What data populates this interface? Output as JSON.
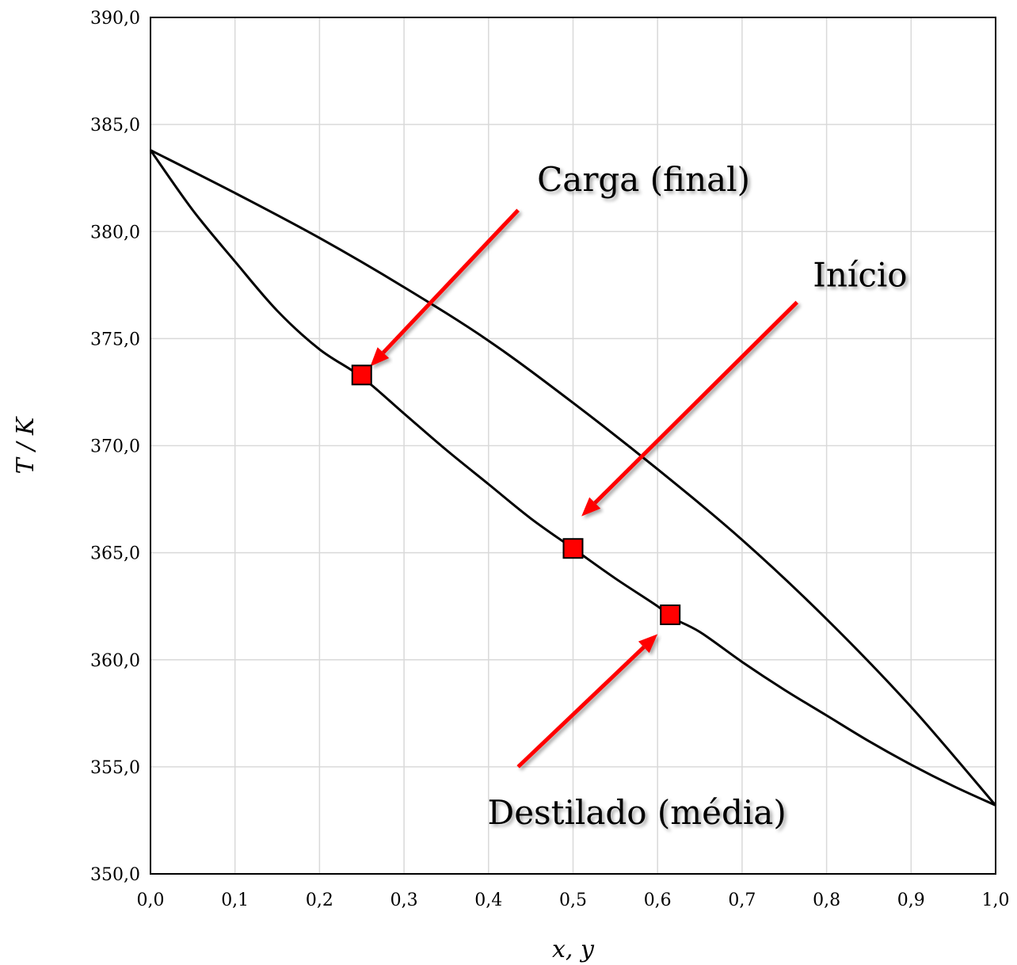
{
  "chart_data": {
    "type": "line",
    "xlabel": "x, y",
    "ylabel": "T / K",
    "xlim": [
      0,
      1
    ],
    "ylim": [
      350,
      390
    ],
    "xticks": [
      0,
      0.1,
      0.2,
      0.3,
      0.4,
      0.5,
      0.6,
      0.7,
      0.8,
      0.9,
      1.0
    ],
    "xtick_labels": [
      "0,0",
      "0,1",
      "0,2",
      "0,3",
      "0,4",
      "0,5",
      "0,6",
      "0,7",
      "0,8",
      "0,9",
      "1,0"
    ],
    "yticks": [
      350,
      355,
      360,
      365,
      370,
      375,
      380,
      385,
      390
    ],
    "ytick_labels": [
      "350,0",
      "355,0",
      "360,0",
      "365,0",
      "370,0",
      "375,0",
      "380,0",
      "385,0",
      "390,0"
    ],
    "grid": true,
    "colors": {
      "curves": "#000000",
      "markers": "#ff0000",
      "arrows": "#ff0000"
    },
    "series": [
      {
        "x": [
          0,
          0.05,
          0.1,
          0.15,
          0.2,
          0.25,
          0.3,
          0.35,
          0.4,
          0.45,
          0.5,
          0.55,
          0.6,
          0.615,
          0.65,
          0.7,
          0.75,
          0.8,
          0.85,
          0.9,
          0.95,
          1.0
        ],
        "values": [
          383.8,
          381.0,
          378.6,
          376.3,
          374.5,
          373.2,
          371.5,
          369.8,
          368.2,
          366.6,
          365.2,
          363.8,
          362.5,
          362.0,
          361.3,
          359.9,
          358.6,
          357.4,
          356.2,
          355.1,
          354.1,
          353.2
        ]
      },
      {
        "x": [
          0,
          0.1,
          0.2,
          0.3,
          0.4,
          0.5,
          0.6,
          0.7,
          0.8,
          0.9,
          1.0
        ],
        "values": [
          383.8,
          381.8,
          379.7,
          377.4,
          374.9,
          372.0,
          368.9,
          365.6,
          361.9,
          357.8,
          353.2
        ]
      }
    ],
    "points": [
      {
        "x": 0.25,
        "y": 373.3
      },
      {
        "x": 0.5,
        "y": 365.2
      },
      {
        "x": 0.615,
        "y": 362.1
      }
    ],
    "annotations": [
      {
        "text": "Carga (final)",
        "points_to": {
          "x": 0.26,
          "y": 373.7
        },
        "tail": {
          "x": 0.435,
          "y": 381.0
        }
      },
      {
        "text": "Início",
        "points_to": {
          "x": 0.51,
          "y": 366.7
        },
        "tail": {
          "x": 0.765,
          "y": 376.7
        }
      },
      {
        "text": "Destilado (média)",
        "points_to": {
          "x": 0.6,
          "y": 361.2
        },
        "tail": {
          "x": 0.435,
          "y": 355.0
        }
      }
    ]
  }
}
